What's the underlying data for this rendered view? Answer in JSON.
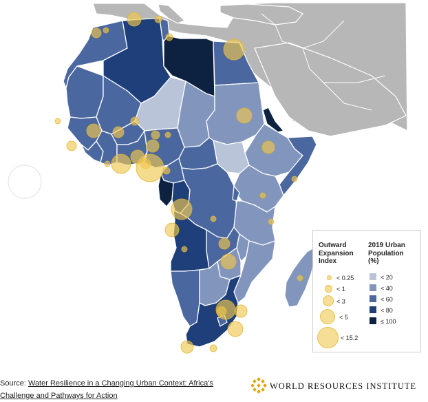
{
  "legend": {
    "expansion_title": [
      "Outward",
      "Expansion",
      "Index"
    ],
    "expansion_items": [
      {
        "label": "< 0.25"
      },
      {
        "label": "< 1"
      },
      {
        "label": "< 3"
      },
      {
        "label": "< 5"
      },
      {
        "label": "< 15.2"
      }
    ],
    "urban_title": [
      "2019 Urban",
      "Population",
      "(%)"
    ],
    "urban_items": [
      {
        "label": "< 20",
        "color": "#b9c4d9"
      },
      {
        "label": "< 40",
        "color": "#8195bd"
      },
      {
        "label": "< 60",
        "color": "#4b67a0"
      },
      {
        "label": "< 80",
        "color": "#1e3f7a"
      },
      {
        "label": "≤ 100",
        "color": "#0c2240"
      }
    ]
  },
  "colors": {
    "background_land": "#b7b7b7",
    "bubble": "#f0c850"
  },
  "footer": {
    "source_prefix": "Source: ",
    "source_link": "Water Resilience in a Changing Urban Context: Africa's Challenge and Pathways for Action",
    "brand": "WORLD RESOURCES INSTITUTE"
  }
}
